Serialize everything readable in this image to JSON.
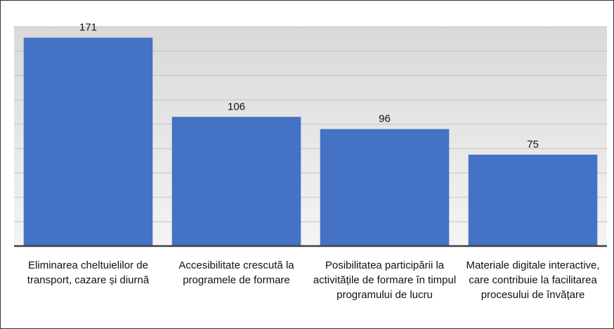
{
  "chart_data": {
    "type": "bar",
    "categories": [
      "Eliminarea cheltuielilor de transport, cazare și diurnă",
      "Accesibilitate crescută la programele de formare",
      "Posibilitatea participării la activitățile de formare în timpul programului de lucru",
      "Materiale digitale interactive, care contribuie la facilitarea procesului de învățare"
    ],
    "values": [
      171,
      106,
      96,
      75
    ],
    "color": "#4472c4",
    "ylim": [
      0,
      180
    ],
    "yticks": [
      0,
      20,
      40,
      60,
      80,
      100,
      120,
      140,
      160,
      180
    ],
    "grid": true
  }
}
